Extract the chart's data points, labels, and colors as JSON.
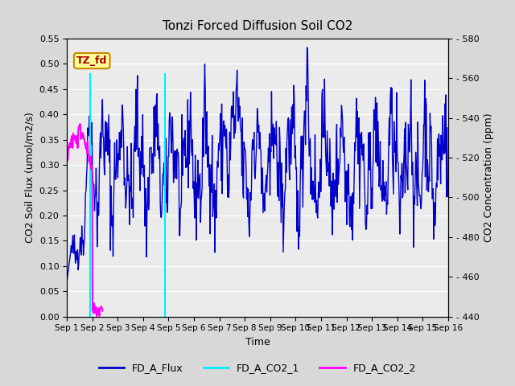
{
  "title": "Tonzi Forced Diffusion Soil CO2",
  "xlabel": "Time",
  "ylabel_left": "CO2 Soil Flux (umol/m2/s)",
  "ylabel_right": "CO2 Concentration (ppm)",
  "ylim_left": [
    0.0,
    0.55
  ],
  "ylim_right": [
    440,
    580
  ],
  "yticks_left": [
    0.0,
    0.05,
    0.1,
    0.15,
    0.2,
    0.25,
    0.3,
    0.35,
    0.4,
    0.45,
    0.5,
    0.55
  ],
  "yticks_right": [
    440,
    460,
    480,
    500,
    520,
    540,
    560,
    580
  ],
  "xtick_labels": [
    "Sep 1",
    "Sep 2",
    "Sep 3",
    "Sep 4",
    "Sep 5",
    "Sep 6",
    "Sep 7",
    "Sep 8",
    "Sep 9",
    "Sep 10",
    "Sep 11",
    "Sep 12",
    "Sep 13",
    "Sep 14",
    "Sep 15",
    "Sep 16"
  ],
  "flux_color": "#0000cc",
  "co2_1_color": "#00eeff",
  "co2_2_color": "#ff00ff",
  "background_color": "#d8d8d8",
  "plot_bg_color": "#ebebeb",
  "grid_color": "#ffffff",
  "label_box_color": "#ffff99",
  "label_box_edge": "#cc8800",
  "label_text": "TZ_fd",
  "label_text_color": "#aa0000",
  "legend_labels": [
    "FD_A_Flux",
    "FD_A_CO2_1",
    "FD_A_CO2_2"
  ],
  "line_width": 1.0,
  "seed": 42
}
